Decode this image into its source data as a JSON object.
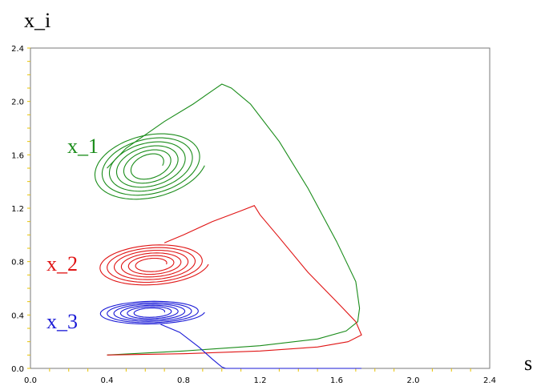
{
  "chart_data": {
    "type": "line",
    "title": "",
    "xlabel": "s",
    "ylabel": "x_i",
    "xlim": [
      0.0,
      2.4
    ],
    "ylim": [
      0.0,
      2.4
    ],
    "grid": false,
    "legend": "none",
    "x_ticks": [
      "0.0",
      "0.4",
      "0.8",
      "1.2",
      "1.6",
      "2.0",
      "2.4"
    ],
    "y_ticks": [
      "0.0",
      "0.4",
      "0.8",
      "1.2",
      "1.6",
      "2.0",
      "2.4"
    ],
    "series": [
      {
        "name": "x_1",
        "color": "#1a8c1a",
        "path": [
          [
            0.4,
            0.1
          ],
          [
            0.8,
            0.13
          ],
          [
            1.2,
            0.17
          ],
          [
            1.5,
            0.22
          ],
          [
            1.65,
            0.28
          ],
          [
            1.71,
            0.35
          ],
          [
            1.72,
            0.45
          ],
          [
            1.7,
            0.65
          ],
          [
            1.6,
            0.95
          ],
          [
            1.45,
            1.35
          ],
          [
            1.3,
            1.7
          ],
          [
            1.15,
            1.98
          ],
          [
            1.05,
            2.1
          ],
          [
            1.0,
            2.13
          ],
          [
            0.95,
            2.08
          ],
          [
            0.85,
            1.98
          ],
          [
            0.7,
            1.85
          ],
          [
            0.5,
            1.65
          ],
          [
            0.4,
            1.5
          ]
        ],
        "orbit": {
          "center": [
            0.62,
            1.52
          ],
          "rx_in": 0.07,
          "ry_in": 0.08,
          "rx_out": 0.29,
          "ry_out": 0.26,
          "tilt": 0.0
        }
      },
      {
        "name": "x_2",
        "color": "#e01414",
        "path": [
          [
            0.4,
            0.1
          ],
          [
            0.8,
            0.11
          ],
          [
            1.2,
            0.13
          ],
          [
            1.5,
            0.16
          ],
          [
            1.66,
            0.2
          ],
          [
            1.73,
            0.25
          ],
          [
            1.7,
            0.35
          ],
          [
            1.6,
            0.5
          ],
          [
            1.45,
            0.72
          ],
          [
            1.3,
            0.98
          ],
          [
            1.2,
            1.15
          ],
          [
            1.17,
            1.22
          ],
          [
            1.1,
            1.18
          ],
          [
            0.95,
            1.1
          ],
          [
            0.8,
            1.0
          ],
          [
            0.7,
            0.94
          ]
        ],
        "orbit": {
          "center": [
            0.64,
            0.78
          ],
          "rx_in": 0.07,
          "ry_in": 0.04,
          "rx_out": 0.29,
          "ry_out": 0.16,
          "tilt": 0.0
        }
      },
      {
        "name": "x_3",
        "color": "#1a1ad6",
        "path": [
          [
            0.68,
            0.33
          ],
          [
            0.78,
            0.27
          ],
          [
            0.88,
            0.16
          ],
          [
            0.95,
            0.07
          ],
          [
            1.0,
            0.01
          ],
          [
            1.02,
            0.0
          ],
          [
            1.73,
            0.0
          ]
        ],
        "orbit": {
          "center": [
            0.63,
            0.42
          ],
          "rx_in": 0.07,
          "ry_in": 0.03,
          "rx_out": 0.28,
          "ry_out": 0.09,
          "tilt": 0.0
        }
      }
    ]
  }
}
